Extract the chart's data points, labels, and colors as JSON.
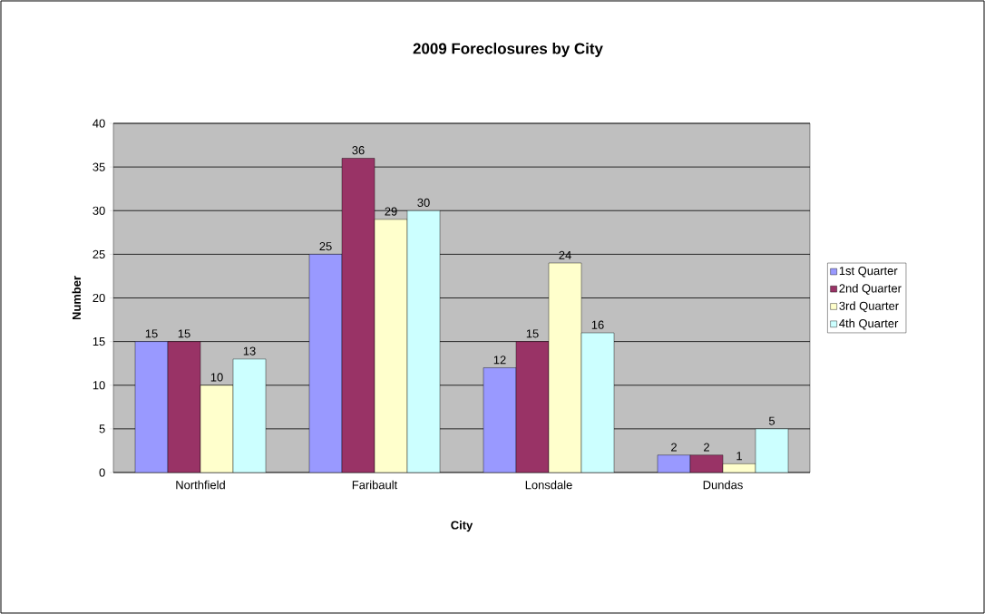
{
  "chart_data": {
    "type": "bar",
    "title": "2009 Foreclosures by City",
    "xlabel": "City",
    "ylabel": "Number",
    "categories": [
      "Northfield",
      "Faribault",
      "Lonsdale",
      "Dundas"
    ],
    "series": [
      {
        "name": "1st Quarter",
        "color": "#9999ff",
        "values": [
          15,
          25,
          12,
          2
        ]
      },
      {
        "name": "2nd Quarter",
        "color": "#993366",
        "values": [
          15,
          36,
          15,
          2
        ]
      },
      {
        "name": "3rd Quarter",
        "color": "#ffffcc",
        "values": [
          10,
          29,
          24,
          1
        ]
      },
      {
        "name": "4th Quarter",
        "color": "#ccffff",
        "values": [
          13,
          30,
          16,
          5
        ]
      }
    ],
    "ylim": [
      0,
      40
    ],
    "yticks": [
      0,
      5,
      10,
      15,
      20,
      25,
      30,
      35,
      40
    ],
    "grid": "y",
    "legend": "right",
    "data_labels": true
  }
}
